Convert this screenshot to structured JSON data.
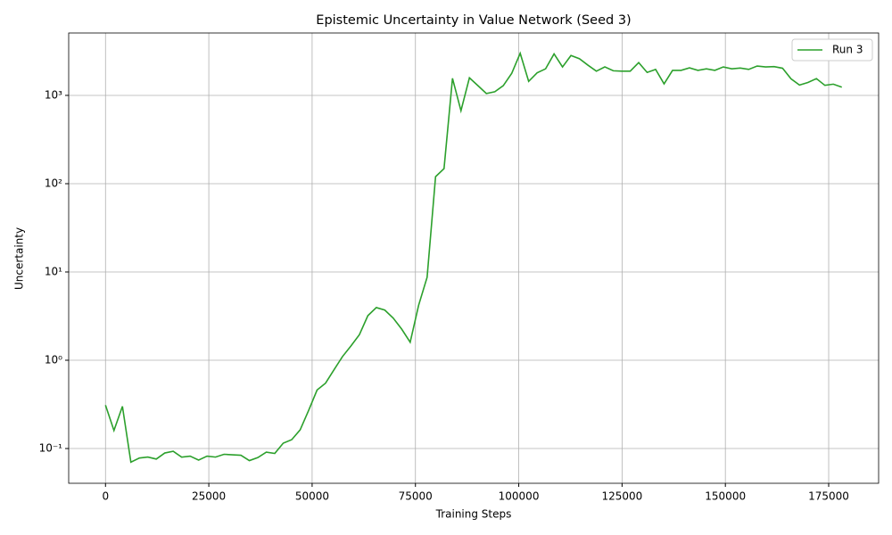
{
  "chart_data": {
    "type": "line",
    "title": "Epistemic Uncertainty in Value Network (Seed 3)",
    "xlabel": "Training Steps",
    "ylabel": "Uncertainty",
    "x": [
      0,
      2048,
      4096,
      6144,
      8192,
      10240,
      12288,
      14336,
      16384,
      18432,
      20480,
      22528,
      24576,
      26624,
      28672,
      30720,
      32768,
      34816,
      36864,
      38912,
      40960,
      43008,
      45056,
      47104,
      49152,
      51200,
      53248,
      55296,
      57344,
      59392,
      61440,
      63488,
      65536,
      67584,
      69632,
      71680,
      73728,
      75776,
      77824,
      79872,
      81920,
      83968,
      86016,
      88064,
      90112,
      92160,
      94208,
      96256,
      98304,
      100352,
      102400,
      104448,
      106496,
      108544,
      110592,
      112640,
      114688,
      116736,
      118784,
      120832,
      122880,
      124928,
      126976,
      129024,
      131072,
      133120,
      135168,
      137216,
      139264,
      141312,
      143360,
      145408,
      147456,
      149504,
      151552,
      153600,
      155648,
      157696,
      159744,
      161792,
      163840,
      165888,
      167936,
      169984,
      172032,
      174080,
      176128,
      178176
    ],
    "series": [
      {
        "name": "Run 3",
        "color": "#2ca02c",
        "values": [
          0.31,
          0.16,
          0.3,
          0.07,
          0.078,
          0.08,
          0.076,
          0.089,
          0.093,
          0.08,
          0.082,
          0.074,
          0.082,
          0.08,
          0.086,
          0.085,
          0.084,
          0.073,
          0.079,
          0.091,
          0.088,
          0.115,
          0.126,
          0.163,
          0.27,
          0.46,
          0.55,
          0.78,
          1.1,
          1.45,
          1.95,
          3.2,
          3.95,
          3.7,
          3.0,
          2.25,
          1.6,
          4.2,
          8.7,
          120,
          148,
          1560,
          670,
          1580,
          1290,
          1050,
          1100,
          1290,
          1780,
          3000,
          1440,
          1800,
          2000,
          2950,
          2100,
          2830,
          2600,
          2200,
          1880,
          2100,
          1900,
          1880,
          1880,
          2350,
          1820,
          1970,
          1350,
          1920,
          1920,
          2050,
          1920,
          2000,
          1920,
          2100,
          2000,
          2040,
          1970,
          2150,
          2100,
          2120,
          2030,
          1540,
          1310,
          1400,
          1550,
          1300,
          1340,
          1240
        ]
      }
    ],
    "xlim": [
      -8909,
      187085
    ],
    "xticks": [
      0,
      25000,
      50000,
      75000,
      100000,
      125000,
      150000,
      175000
    ],
    "ylim": [
      0.0404,
      5090
    ],
    "yticks": [
      {
        "value": 0.1,
        "label": "10⁻¹"
      },
      {
        "value": 1,
        "label": "10⁰"
      },
      {
        "value": 10,
        "label": "10¹"
      },
      {
        "value": 100,
        "label": "10²"
      },
      {
        "value": 1000,
        "label": "10³"
      }
    ],
    "ylog": true,
    "grid": true,
    "legend": "upper right"
  }
}
